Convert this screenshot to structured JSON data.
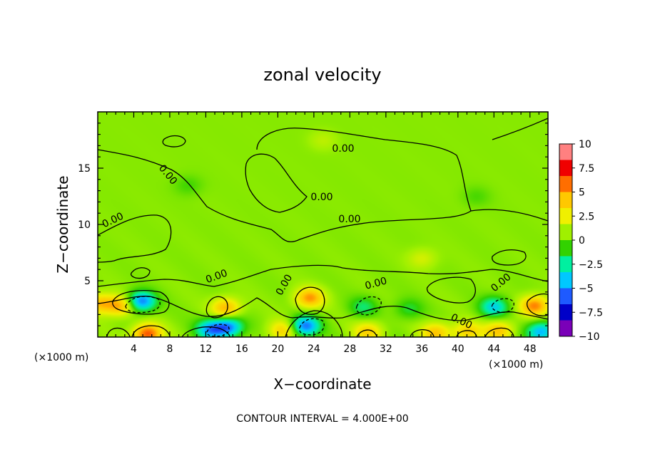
{
  "chart_data": {
    "type": "heatmap",
    "title": "zonal velocity",
    "xlabel": "X−coordinate",
    "ylabel": "Z−coordinate",
    "x_unit_label": "(×1000 m)",
    "y_unit_label": "(×1000 m)",
    "xlim": [
      0,
      50
    ],
    "ylim": [
      0,
      20
    ],
    "x_ticks": [
      4,
      8,
      12,
      16,
      20,
      24,
      28,
      32,
      36,
      40,
      44,
      48
    ],
    "y_ticks": [
      5,
      10,
      15
    ],
    "x_tick_labels": [
      "4",
      "8",
      "12",
      "16",
      "20",
      "24",
      "28",
      "32",
      "36",
      "40",
      "44",
      "48"
    ],
    "y_tick_labels": [
      "5",
      "10",
      "15"
    ],
    "colorbar": {
      "range": [
        -10,
        10
      ],
      "ticks": [
        10,
        7.5,
        5,
        2.5,
        0,
        -2.5,
        -5,
        -7.5,
        -10
      ],
      "tick_labels": [
        "10",
        "7.5",
        "5",
        "2.5",
        "0",
        "−2.5",
        "−5",
        "−7.5",
        "−10"
      ],
      "colors": [
        "#7a00b8",
        "#0000c8",
        "#1e5aff",
        "#00c8ff",
        "#00f0a0",
        "#32d200",
        "#a0f000",
        "#f0f000",
        "#ffc800",
        "#ff6e00",
        "#f00000",
        "#ff8080"
      ]
    },
    "contour_interval_text": "CONTOUR INTERVAL = 4.000E+00",
    "contour_labels": [
      "0.00",
      "0.00",
      "0.00",
      "0.00",
      "0.00",
      "0.00",
      "0.00",
      "0.00",
      "0.00",
      "0.00"
    ],
    "background_value": 0.5,
    "features": [
      {
        "x": 5.5,
        "z": 0.3,
        "value": 6.5
      },
      {
        "x": 2.5,
        "z": 2.8,
        "value": 4.5
      },
      {
        "x": 4.8,
        "z": 3.2,
        "value": -6.5
      },
      {
        "x": 14.2,
        "z": 2.6,
        "value": 4.5
      },
      {
        "x": 12.5,
        "z": 0.7,
        "value": -5.5
      },
      {
        "x": 14.5,
        "z": 0.9,
        "value": -6.0
      },
      {
        "x": 23.5,
        "z": 3.5,
        "value": 5.0
      },
      {
        "x": 23.0,
        "z": 1.0,
        "value": -6.5
      },
      {
        "x": 20.5,
        "z": 0.6,
        "value": 3.5
      },
      {
        "x": 29.5,
        "z": 2.7,
        "value": -2.5
      },
      {
        "x": 30.0,
        "z": 0.5,
        "value": 3.5
      },
      {
        "x": 34.5,
        "z": 2.5,
        "value": -2.0
      },
      {
        "x": 37.5,
        "z": 0.4,
        "value": 4.0
      },
      {
        "x": 41.0,
        "z": 0.5,
        "value": 3.5
      },
      {
        "x": 44.0,
        "z": 2.7,
        "value": -4.5
      },
      {
        "x": 44.5,
        "z": 0.6,
        "value": 4.0
      },
      {
        "x": 48.5,
        "z": 2.8,
        "value": 5.5
      },
      {
        "x": 49.2,
        "z": 0.5,
        "value": -5.5
      },
      {
        "x": 0.2,
        "z": 3.0,
        "value": 4.0
      },
      {
        "x": 36.0,
        "z": 7.0,
        "value": 1.6
      },
      {
        "x": 10.0,
        "z": 13.5,
        "value": -1.2
      },
      {
        "x": 42.0,
        "z": 12.5,
        "value": -1.0
      },
      {
        "x": 25.0,
        "z": 17.5,
        "value": 1.0
      }
    ]
  }
}
